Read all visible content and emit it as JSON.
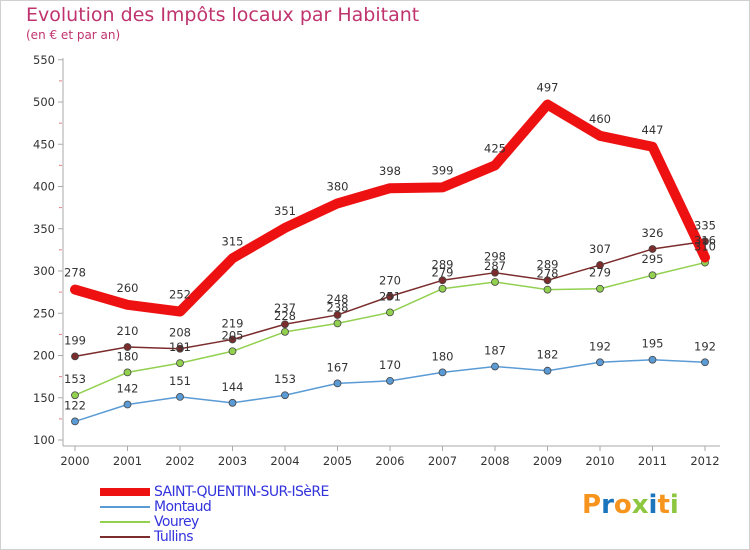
{
  "title": "Evolution des Impôts locaux par Habitant",
  "subtitle": "(en € et par an)",
  "logo": {
    "text": "Proxiti",
    "letters": [
      "P",
      "r",
      "o",
      "x",
      "i",
      "t",
      "i"
    ],
    "colors": [
      "#f7941d",
      "#1b75bc",
      "#f7941d",
      "#8dc63f",
      "#1b75bc",
      "#f7941d",
      "#8dc63f"
    ]
  },
  "chart_data": {
    "type": "line",
    "title": "Evolution des Impôts locaux par Habitant",
    "subtitle": "(en € et par an)",
    "x": [
      "2000",
      "2001",
      "2002",
      "2003",
      "2004",
      "2005",
      "2006",
      "2007",
      "2008",
      "2009",
      "2010",
      "2011",
      "2012"
    ],
    "y_ticks": [
      "100",
      "150",
      "200",
      "250",
      "300",
      "350",
      "400",
      "450",
      "500",
      "550"
    ],
    "ylim": [
      100,
      550
    ],
    "grid": false,
    "legend_position": "bottom-left",
    "series": [
      {
        "name": "SAINT-QUENTIN-SUR-ISèRE",
        "color": "#ee1111",
        "text_color": "#3333dd",
        "values": [
          278,
          260,
          252,
          315,
          351,
          380,
          398,
          399,
          425,
          497,
          460,
          447,
          316
        ],
        "labels": [
          "278",
          "260",
          "252",
          "315",
          "351",
          "380",
          "398",
          "399",
          "425",
          "497",
          "460",
          "447",
          "316"
        ]
      },
      {
        "name": "Montaud",
        "color": "#5b9bd5",
        "text_color": "#3333dd",
        "values": [
          122,
          142,
          151,
          144,
          153,
          167,
          170,
          180,
          187,
          182,
          192,
          195,
          192
        ],
        "labels": [
          "122",
          "142",
          "151",
          "144",
          "153",
          "167",
          "170",
          "180",
          "187",
          "182",
          "192",
          "195",
          "192"
        ]
      },
      {
        "name": "Vourey",
        "color": "#92d050",
        "text_color": "#3333dd",
        "values": [
          153,
          180,
          191,
          205,
          228,
          238,
          251,
          279,
          287,
          278,
          279,
          295,
          310
        ],
        "labels": [
          "153",
          "180",
          "191",
          "205",
          "228",
          "238",
          "251",
          "279",
          "287",
          "278",
          "279",
          "295",
          "310"
        ]
      },
      {
        "name": "Tullins",
        "color": "#7b2c2c",
        "text_color": "#3333dd",
        "values": [
          199,
          210,
          208,
          219,
          237,
          248,
          270,
          289,
          298,
          289,
          307,
          326,
          335
        ],
        "labels": [
          "199",
          "210",
          "208",
          "219",
          "237",
          "248",
          "270",
          "289",
          "298",
          "289",
          "307",
          "326",
          "335"
        ]
      }
    ]
  }
}
